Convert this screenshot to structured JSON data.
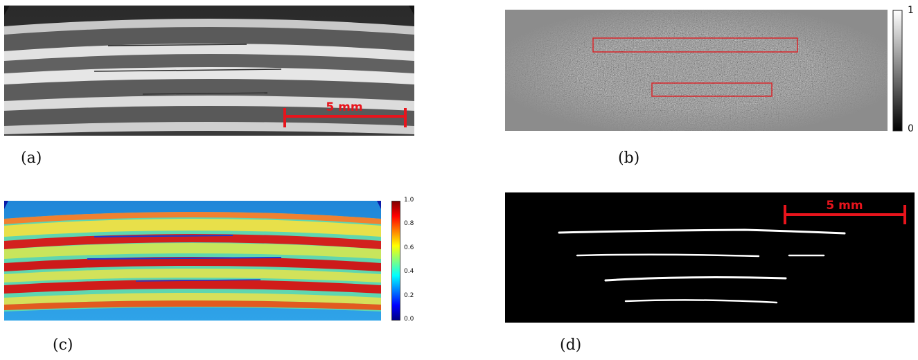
{
  "panels": {
    "a": {
      "caption": "(a)",
      "scalebar_label": "5 mm",
      "description": "grayscale CT slice of layered laminate"
    },
    "b": {
      "caption": "(b)",
      "colorbar_max": "1",
      "colorbar_min": "0",
      "description": "noise/difference map with two red regions of interest"
    },
    "c": {
      "caption": "(c)",
      "colorbar_ticks": [
        "1.0",
        "0.8",
        "0.6",
        "0.4",
        "0.2",
        "0.0"
      ],
      "description": "jet colormap rendering of laminate"
    },
    "d": {
      "caption": "(d)",
      "scalebar_label": "5 mm",
      "description": "binary segmentation of interlaminar cracks"
    }
  },
  "colors": {
    "scalebar": "#e8141c",
    "roi_box": "#d9262b",
    "background": "#ffffff"
  }
}
